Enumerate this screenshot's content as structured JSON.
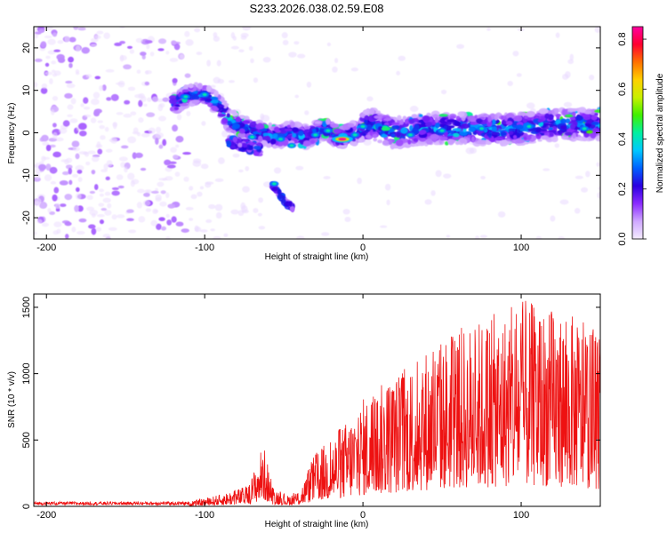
{
  "figure_title": "S233.2026.038.02.59.E08",
  "chart_data": [
    {
      "type": "heatmap",
      "title": "S233.2026.038.02.59.E08",
      "xlabel": "Height of straight line (km)",
      "ylabel": "Frequency (Hz)",
      "xlim": [
        -208,
        150
      ],
      "ylim": [
        -25,
        25
      ],
      "xticks": [
        -200,
        -100,
        0,
        100
      ],
      "yticks": [
        -20,
        -10,
        0,
        10,
        20
      ],
      "colorbar": {
        "label": "Normalized spectral amplitude",
        "range": [
          0.0,
          0.85
        ],
        "ticks": [
          "0.0",
          "0.2",
          "0.4",
          "0.6",
          "0.8"
        ],
        "tick_values": [
          0.0,
          0.2,
          0.4,
          0.6,
          0.8
        ],
        "colormap": [
          "#f4ecff",
          "#cfa8ff",
          "#8b2bff",
          "#2a00e0",
          "#0060ff",
          "#00c8ff",
          "#00f0a0",
          "#40f000",
          "#c8f000",
          "#ffd000",
          "#ff7000",
          "#ff0030",
          "#ff00a0"
        ]
      },
      "ridge": [
        {
          "x": -118,
          "y": 7
        },
        {
          "x": -110,
          "y": 9
        },
        {
          "x": -100,
          "y": 9
        },
        {
          "x": -92,
          "y": 7
        },
        {
          "x": -85,
          "y": 3
        },
        {
          "x": -75,
          "y": 1
        },
        {
          "x": -65,
          "y": 0
        },
        {
          "x": -55,
          "y": -1
        },
        {
          "x": -45,
          "y": 0
        },
        {
          "x": -35,
          "y": -1
        },
        {
          "x": -25,
          "y": 1
        },
        {
          "x": -15,
          "y": -1
        },
        {
          "x": -5,
          "y": 0
        },
        {
          "x": 5,
          "y": 2
        },
        {
          "x": 20,
          "y": 0
        },
        {
          "x": 40,
          "y": 1
        },
        {
          "x": 60,
          "y": 1
        },
        {
          "x": 80,
          "y": 1
        },
        {
          "x": 100,
          "y": 1
        },
        {
          "x": 120,
          "y": 2
        },
        {
          "x": 150,
          "y": 2
        }
      ],
      "lower_branch": [
        {
          "x": -85,
          "y": -2
        },
        {
          "x": -75,
          "y": -3
        },
        {
          "x": -65,
          "y": -4
        }
      ],
      "side_branch": [
        {
          "x": -58,
          "y": -12
        },
        {
          "x": -50,
          "y": -16
        },
        {
          "x": -44,
          "y": -18
        }
      ],
      "peak": {
        "x": -13,
        "y": -1.5,
        "amplitude": 0.85
      }
    },
    {
      "type": "line",
      "title": "",
      "xlabel": "Height of straight line (km)",
      "ylabel": "SNR (10 * v/v)",
      "xlim": [
        -208,
        150
      ],
      "ylim": [
        0,
        1600
      ],
      "xticks": [
        -200,
        -100,
        0,
        100
      ],
      "yticks": [
        0,
        500,
        1000,
        1500
      ],
      "color": "#ee1111",
      "series_envelope": [
        {
          "x": -208,
          "v": 25
        },
        {
          "x": -160,
          "v": 25
        },
        {
          "x": -110,
          "v": 35
        },
        {
          "x": -90,
          "v": 90
        },
        {
          "x": -72,
          "v": 160
        },
        {
          "x": -63,
          "v": 480
        },
        {
          "x": -57,
          "v": 150
        },
        {
          "x": -48,
          "v": 80
        },
        {
          "x": -40,
          "v": 120
        },
        {
          "x": -30,
          "v": 410
        },
        {
          "x": -20,
          "v": 520
        },
        {
          "x": -10,
          "v": 650
        },
        {
          "x": 0,
          "v": 820
        },
        {
          "x": 20,
          "v": 1000
        },
        {
          "x": 40,
          "v": 1200
        },
        {
          "x": 60,
          "v": 1350
        },
        {
          "x": 90,
          "v": 1480
        },
        {
          "x": 100,
          "v": 1560
        },
        {
          "x": 130,
          "v": 1460
        },
        {
          "x": 150,
          "v": 1300
        }
      ]
    }
  ]
}
